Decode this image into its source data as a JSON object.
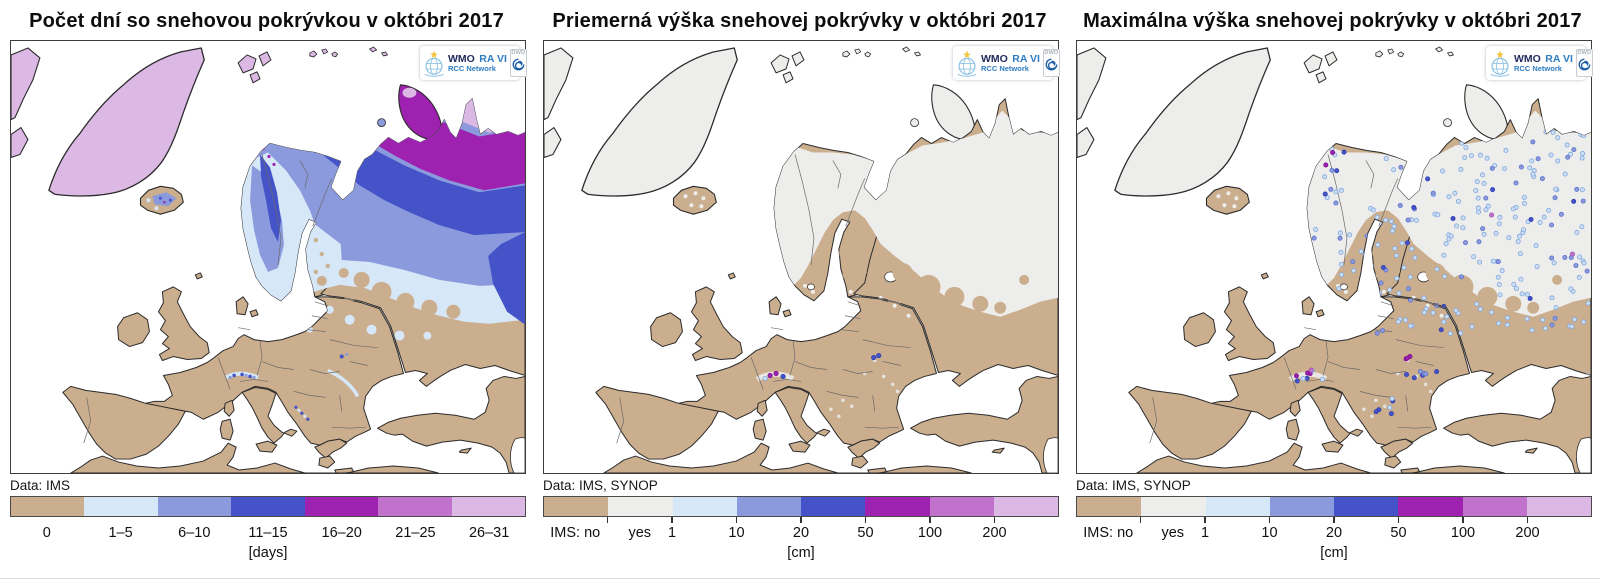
{
  "palette": {
    "tan": "#cbae8e",
    "gray_snow": "#ededeb",
    "pale_blue": "#d6e7f8",
    "periwinkle": "#8b9add",
    "royal_blue": "#4553c9",
    "magenta": "#9e21af",
    "orchid": "#c172cd",
    "plum": "#dbb9e4",
    "sea": "#ffffff",
    "coast": "#2b2b2b",
    "border_line": "#6a6a6a"
  },
  "logo": {
    "wmo": "WMO",
    "ra": "RA VI",
    "rcc": "RCC Network",
    "dwd": "DWD"
  },
  "panels": [
    {
      "id": "days-with-snow-cover",
      "title": "Počet dní so snehovou pokrývkou v októbri 2017",
      "data_source": "Data: IMS",
      "unit": "[days]",
      "legend": {
        "style": "blocks",
        "segments": [
          {
            "color": "tan",
            "label": "0"
          },
          {
            "color": "pale_blue",
            "label": "1–5"
          },
          {
            "color": "periwinkle",
            "label": "6–10"
          },
          {
            "color": "royal_blue",
            "label": "11–15"
          },
          {
            "color": "magenta",
            "label": "16–20"
          },
          {
            "color": "orchid",
            "label": "21–25"
          },
          {
            "color": "plum",
            "label": "26–31"
          }
        ]
      }
    },
    {
      "id": "average-snow-depth",
      "title": "Priemerná výška snehovej pokrývky v októbri 2017",
      "data_source": "Data: IMS, SYNOP",
      "unit": "[cm]",
      "legend": {
        "style": "ticks",
        "segments": [
          {
            "color": "tan",
            "label": "IMS: no"
          },
          {
            "color": "gray_snow",
            "label": "yes"
          },
          {
            "color": "pale_blue",
            "label": ""
          },
          {
            "color": "periwinkle",
            "label": ""
          },
          {
            "color": "royal_blue",
            "label": ""
          },
          {
            "color": "magenta",
            "label": ""
          },
          {
            "color": "orchid",
            "label": ""
          },
          {
            "color": "plum",
            "label": ""
          }
        ],
        "tick_labels": [
          "",
          "1",
          "10",
          "20",
          "50",
          "100",
          "200"
        ]
      }
    },
    {
      "id": "maximum-snow-depth",
      "title": "Maximálna výška snehovej pokrývky v októbri 2017",
      "data_source": "Data: IMS, SYNOP",
      "unit": "[cm]",
      "legend": {
        "style": "ticks",
        "segments": [
          {
            "color": "tan",
            "label": "IMS: no"
          },
          {
            "color": "gray_snow",
            "label": "yes"
          },
          {
            "color": "pale_blue",
            "label": ""
          },
          {
            "color": "periwinkle",
            "label": ""
          },
          {
            "color": "royal_blue",
            "label": ""
          },
          {
            "color": "magenta",
            "label": ""
          },
          {
            "color": "orchid",
            "label": ""
          },
          {
            "color": "plum",
            "label": ""
          }
        ],
        "tick_labels": [
          "",
          "1",
          "10",
          "20",
          "50",
          "100",
          "200"
        ]
      }
    }
  ]
}
